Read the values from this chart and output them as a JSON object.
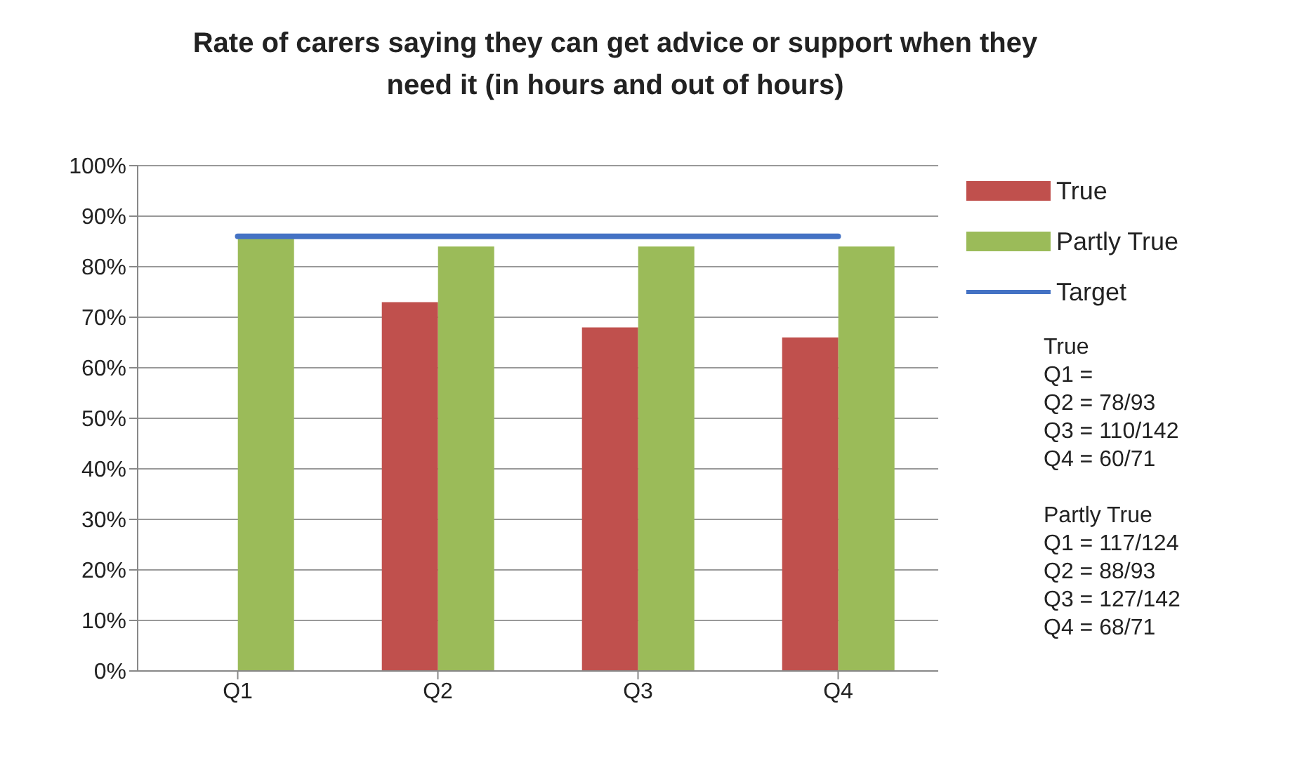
{
  "chart_data": {
    "type": "bar",
    "title": "Rate of carers saying they can get advice or support when they need it (in hours and out of hours)",
    "categories": [
      "Q1",
      "Q2",
      "Q3",
      "Q4"
    ],
    "series": [
      {
        "name": "True",
        "color": "#c0504d",
        "values": [
          null,
          73,
          68,
          66
        ]
      },
      {
        "name": "Partly True",
        "color": "#9bbb59",
        "values": [
          86,
          84,
          84,
          84
        ]
      },
      {
        "name": "Target",
        "type": "line",
        "color": "#4472c4",
        "values": [
          86,
          86,
          86,
          86
        ]
      }
    ],
    "ylim": [
      0,
      100
    ],
    "yticks": [
      {
        "value": 0,
        "label": "0%"
      },
      {
        "value": 10,
        "label": "10%"
      },
      {
        "value": 20,
        "label": "20%"
      },
      {
        "value": 30,
        "label": "30%"
      },
      {
        "value": 40,
        "label": "40%"
      },
      {
        "value": 50,
        "label": "50%"
      },
      {
        "value": 60,
        "label": "60%"
      },
      {
        "value": 70,
        "label": "70%"
      },
      {
        "value": 80,
        "label": "80%"
      },
      {
        "value": 90,
        "label": "90%"
      },
      {
        "value": 100,
        "label": "100%"
      }
    ],
    "grid": "y",
    "legend": "right",
    "marker": "none",
    "annotations": [
      "True",
      "Q1 =",
      "Q2 = 78/93",
      "Q3 = 110/142",
      "Q4 = 60/71",
      "Partly True",
      "Q1 = 117/124",
      "Q2 = 88/93",
      "Q3 = 127/142",
      "Q4 = 68/71"
    ]
  }
}
